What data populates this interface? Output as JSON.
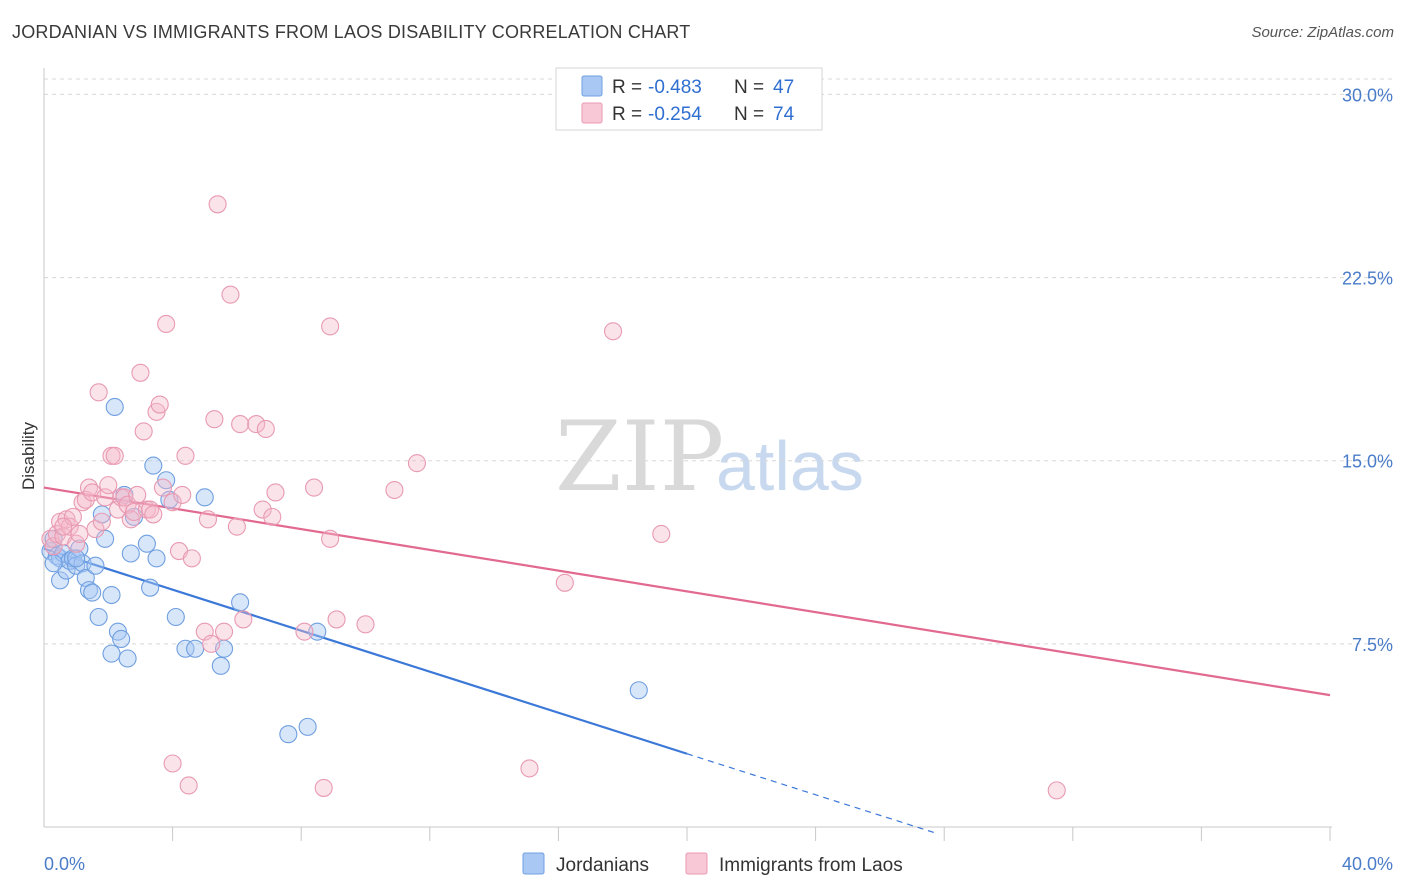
{
  "title": "JORDANIAN VS IMMIGRANTS FROM LAOS DISABILITY CORRELATION CHART",
  "source": "Source: ZipAtlas.com",
  "watermark": {
    "zip": "ZIP",
    "atlas": "atlas"
  },
  "legend": {
    "row1": {
      "r_label": "R = ",
      "r_value": "-0.483",
      "n_label": "N = ",
      "n_value": "47"
    },
    "row2": {
      "r_label": "R = ",
      "r_value": "-0.254",
      "n_label": "N = ",
      "n_value": "74"
    }
  },
  "colors": {
    "blue": "#3b78d8",
    "blue_fill": "#a9c8f3",
    "pink": "#e2698f",
    "pink_fill": "#f5b8cb",
    "grid": "#d8d8d8",
    "axis_text": "#4a7cc9"
  },
  "chart_data": {
    "type": "scatter",
    "ylabel": "Disability",
    "xlim": [
      0,
      40
    ],
    "ylim": [
      0,
      31
    ],
    "y_ticks": [
      {
        "value": 7.5,
        "label": "7.5%"
      },
      {
        "value": 15,
        "label": "15.0%"
      },
      {
        "value": 22.5,
        "label": "22.5%"
      },
      {
        "value": 30,
        "label": "30.0%"
      }
    ],
    "x_tick_labels": {
      "min": "0.0%",
      "max": "40.0%"
    },
    "x_minor_ticks": [
      4,
      8,
      12,
      16,
      20,
      24,
      28,
      32,
      36,
      40
    ],
    "series": [
      {
        "name": "Jordanians",
        "color": "#3b78d8",
        "trend": {
          "x0": 0,
          "y0": 11.4,
          "x1": 20,
          "y1": 3.0,
          "dash_to_x": 27.8
        },
        "points": [
          [
            0.2,
            11.3
          ],
          [
            0.3,
            11.8
          ],
          [
            0.4,
            11.1
          ],
          [
            0.5,
            11.0
          ],
          [
            0.5,
            10.1
          ],
          [
            0.6,
            11.2
          ],
          [
            0.7,
            10.5
          ],
          [
            0.8,
            10.9
          ],
          [
            0.9,
            11.0
          ],
          [
            1.0,
            10.7
          ],
          [
            1.1,
            11.4
          ],
          [
            1.2,
            10.8
          ],
          [
            1.3,
            10.2
          ],
          [
            1.4,
            9.7
          ],
          [
            1.5,
            9.6
          ],
          [
            1.6,
            10.7
          ],
          [
            1.7,
            8.6
          ],
          [
            1.8,
            12.8
          ],
          [
            1.9,
            11.8
          ],
          [
            2.1,
            7.1
          ],
          [
            2.1,
            9.5
          ],
          [
            2.2,
            17.2
          ],
          [
            2.3,
            8.0
          ],
          [
            2.4,
            7.7
          ],
          [
            2.5,
            13.6
          ],
          [
            2.6,
            6.9
          ],
          [
            2.7,
            11.2
          ],
          [
            2.8,
            12.7
          ],
          [
            3.2,
            11.6
          ],
          [
            3.3,
            9.8
          ],
          [
            3.4,
            14.8
          ],
          [
            3.5,
            11.0
          ],
          [
            3.8,
            14.2
          ],
          [
            3.9,
            13.4
          ],
          [
            4.1,
            8.6
          ],
          [
            4.4,
            7.3
          ],
          [
            4.7,
            7.3
          ],
          [
            5.0,
            13.5
          ],
          [
            5.5,
            6.6
          ],
          [
            5.6,
            7.3
          ],
          [
            6.1,
            9.2
          ],
          [
            7.6,
            3.8
          ],
          [
            8.2,
            4.1
          ],
          [
            8.5,
            8.0
          ],
          [
            18.5,
            5.6
          ],
          [
            0.3,
            10.8
          ],
          [
            1.0,
            11.0
          ]
        ]
      },
      {
        "name": "Immigrants from Laos",
        "color": "#e2698f",
        "trend": {
          "x0": 0,
          "y0": 13.9,
          "x1": 40,
          "y1": 5.4
        },
        "points": [
          [
            0.2,
            11.8
          ],
          [
            0.3,
            11.5
          ],
          [
            0.4,
            12.0
          ],
          [
            0.5,
            12.5
          ],
          [
            0.6,
            11.9
          ],
          [
            0.7,
            12.6
          ],
          [
            0.8,
            12.3
          ],
          [
            0.9,
            12.7
          ],
          [
            1.0,
            11.6
          ],
          [
            1.1,
            12.0
          ],
          [
            1.2,
            13.3
          ],
          [
            1.3,
            13.4
          ],
          [
            1.4,
            13.9
          ],
          [
            1.5,
            13.7
          ],
          [
            1.6,
            12.2
          ],
          [
            1.7,
            17.8
          ],
          [
            1.8,
            12.5
          ],
          [
            1.9,
            13.5
          ],
          [
            2.0,
            14.0
          ],
          [
            2.1,
            15.2
          ],
          [
            2.2,
            15.2
          ],
          [
            2.3,
            13.0
          ],
          [
            2.4,
            13.5
          ],
          [
            2.5,
            13.5
          ],
          [
            2.6,
            13.2
          ],
          [
            2.7,
            12.6
          ],
          [
            2.8,
            12.9
          ],
          [
            2.9,
            13.6
          ],
          [
            3.0,
            18.6
          ],
          [
            3.1,
            16.2
          ],
          [
            3.2,
            13.0
          ],
          [
            3.3,
            13.0
          ],
          [
            3.4,
            12.8
          ],
          [
            3.5,
            17.0
          ],
          [
            3.6,
            17.3
          ],
          [
            3.7,
            13.9
          ],
          [
            3.8,
            20.6
          ],
          [
            4.0,
            13.3
          ],
          [
            4.0,
            2.6
          ],
          [
            4.2,
            11.3
          ],
          [
            4.3,
            13.6
          ],
          [
            4.4,
            15.2
          ],
          [
            4.5,
            1.7
          ],
          [
            4.6,
            11.0
          ],
          [
            5.0,
            8.0
          ],
          [
            5.1,
            12.6
          ],
          [
            5.2,
            7.5
          ],
          [
            5.3,
            16.7
          ],
          [
            5.4,
            25.5
          ],
          [
            5.6,
            8.0
          ],
          [
            5.8,
            21.8
          ],
          [
            6.0,
            12.3
          ],
          [
            6.1,
            16.5
          ],
          [
            6.2,
            8.5
          ],
          [
            6.6,
            16.5
          ],
          [
            6.8,
            13.0
          ],
          [
            6.9,
            16.3
          ],
          [
            7.1,
            12.7
          ],
          [
            7.2,
            13.7
          ],
          [
            8.1,
            8.0
          ],
          [
            8.4,
            13.9
          ],
          [
            8.7,
            1.6
          ],
          [
            8.9,
            11.8
          ],
          [
            8.9,
            20.5
          ],
          [
            9.1,
            8.5
          ],
          [
            10.0,
            8.3
          ],
          [
            10.9,
            13.8
          ],
          [
            11.6,
            14.9
          ],
          [
            15.1,
            2.4
          ],
          [
            16.2,
            10.0
          ],
          [
            17.7,
            20.3
          ],
          [
            19.2,
            12.0
          ],
          [
            31.5,
            1.5
          ],
          [
            0.6,
            12.3
          ]
        ]
      }
    ]
  },
  "bottom_legend": {
    "item1": "Jordanians",
    "item2": "Immigrants from Laos"
  }
}
